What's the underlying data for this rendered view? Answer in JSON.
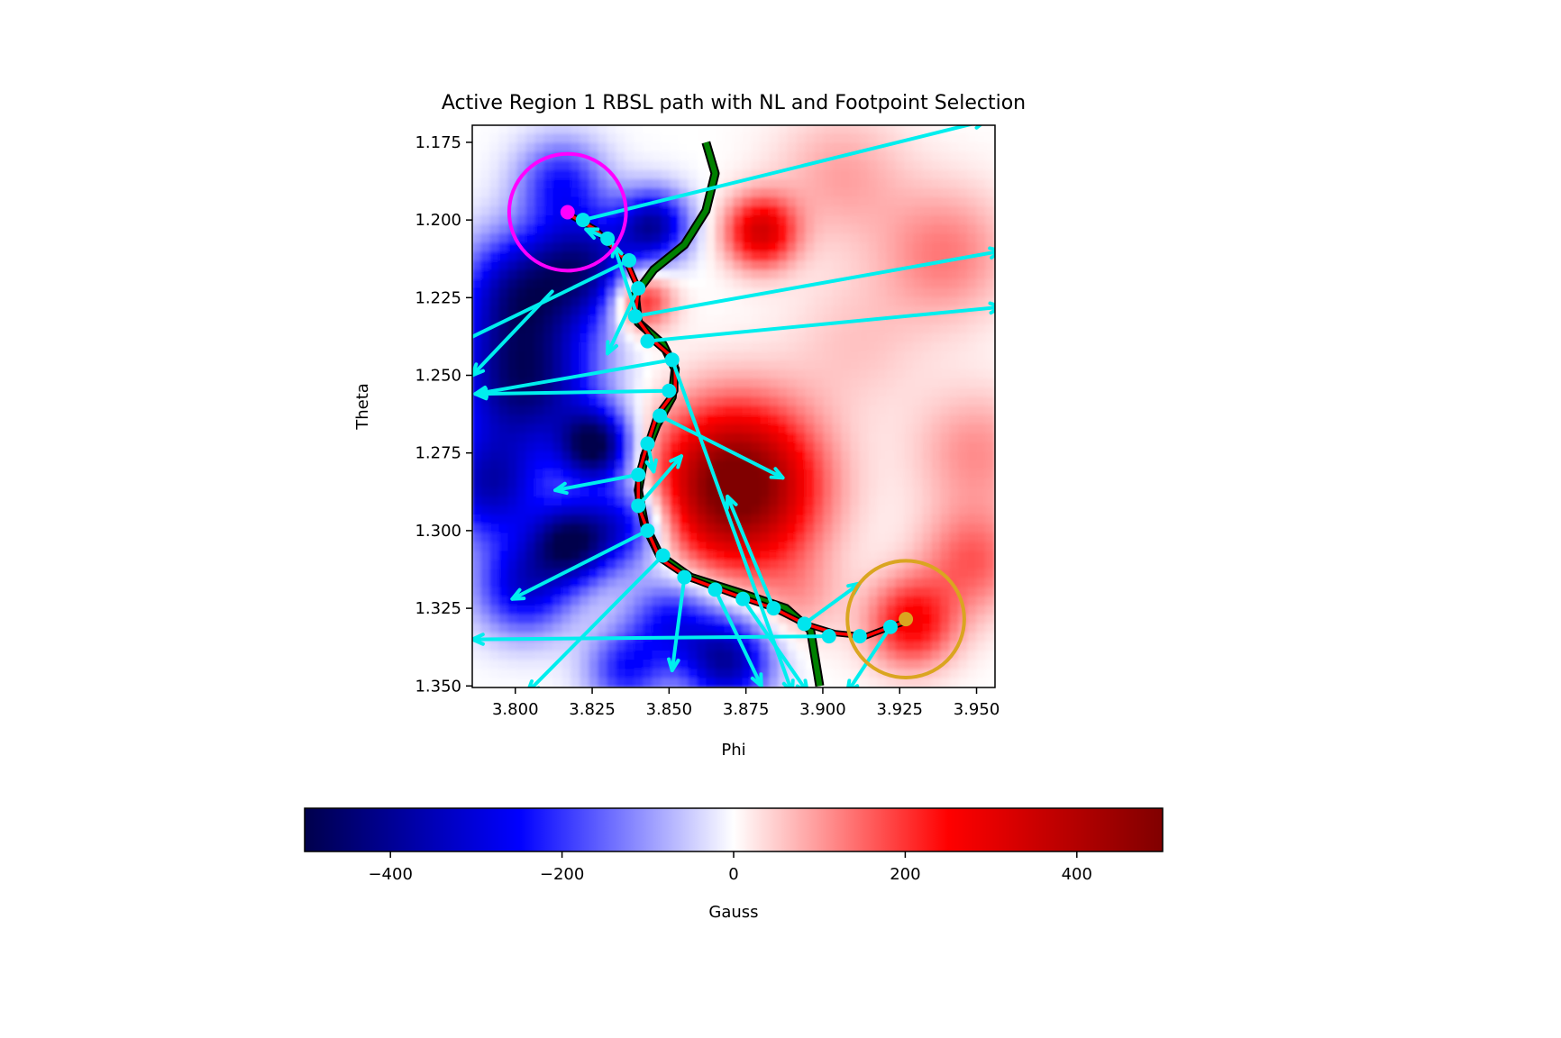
{
  "chart_data": {
    "type": "heatmap",
    "title": "Active Region 1 RBSL path with NL and Footpoint Selection",
    "xlabel": "Phi",
    "ylabel": "Theta",
    "xlim": [
      3.786,
      3.956
    ],
    "ylim": [
      1.3505,
      1.1695
    ],
    "x_ticks": [
      3.8,
      3.825,
      3.85,
      3.875,
      3.9,
      3.925,
      3.95
    ],
    "x_tick_labels": [
      "3.800",
      "3.825",
      "3.850",
      "3.875",
      "3.900",
      "3.925",
      "3.950"
    ],
    "y_ticks": [
      1.175,
      1.2,
      1.225,
      1.25,
      1.275,
      1.3,
      1.325,
      1.35
    ],
    "y_tick_labels": [
      "1.175",
      "1.200",
      "1.225",
      "1.250",
      "1.275",
      "1.300",
      "1.325",
      "1.350"
    ],
    "colormap": "seismic",
    "colorbar": {
      "label": "Gauss",
      "range": [
        -500,
        500
      ],
      "ticks": [
        -400,
        -200,
        0,
        200,
        400
      ],
      "tick_labels": [
        "−400",
        "−200",
        "0",
        "200",
        "400"
      ],
      "orientation": "horizontal"
    },
    "field_blobs": [
      {
        "phi": 3.803,
        "theta": 1.252,
        "gauss": -450,
        "radius": 0.016
      },
      {
        "phi": 3.826,
        "theta": 1.273,
        "gauss": -480,
        "radius": 0.008
      },
      {
        "phi": 3.801,
        "theta": 1.223,
        "gauss": -330,
        "radius": 0.013
      },
      {
        "phi": 3.823,
        "theta": 1.215,
        "gauss": -360,
        "radius": 0.012
      },
      {
        "phi": 3.845,
        "theta": 1.202,
        "gauss": -360,
        "radius": 0.008
      },
      {
        "phi": 3.792,
        "theta": 1.286,
        "gauss": -330,
        "radius": 0.012
      },
      {
        "phi": 3.818,
        "theta": 1.304,
        "gauss": -430,
        "radius": 0.009
      },
      {
        "phi": 3.836,
        "theta": 1.298,
        "gauss": -280,
        "radius": 0.01
      },
      {
        "phi": 3.803,
        "theta": 1.318,
        "gauss": -300,
        "radius": 0.011
      },
      {
        "phi": 3.869,
        "theta": 1.342,
        "gauss": -380,
        "radius": 0.01
      },
      {
        "phi": 3.851,
        "theta": 1.329,
        "gauss": -240,
        "radius": 0.01
      },
      {
        "phi": 3.836,
        "theta": 1.345,
        "gauss": -220,
        "radius": 0.009
      },
      {
        "phi": 3.815,
        "theta": 1.188,
        "gauss": -220,
        "radius": 0.01
      },
      {
        "phi": 3.872,
        "theta": 1.286,
        "gauss": 560,
        "radius": 0.018
      },
      {
        "phi": 3.88,
        "theta": 1.204,
        "gauss": 330,
        "radius": 0.008
      },
      {
        "phi": 3.841,
        "theta": 1.226,
        "gauss": 270,
        "radius": 0.007
      },
      {
        "phi": 3.929,
        "theta": 1.33,
        "gauss": 260,
        "radius": 0.01
      },
      {
        "phi": 3.949,
        "theta": 1.31,
        "gauss": 160,
        "radius": 0.012
      },
      {
        "phi": 3.94,
        "theta": 1.211,
        "gauss": 130,
        "radius": 0.015
      },
      {
        "phi": 3.95,
        "theta": 1.275,
        "gauss": 110,
        "radius": 0.014
      },
      {
        "phi": 3.906,
        "theta": 1.186,
        "gauss": 90,
        "radius": 0.015
      },
      {
        "phi": 3.911,
        "theta": 1.24,
        "gauss": 55,
        "radius": 0.016
      },
      {
        "phi": 3.893,
        "theta": 1.322,
        "gauss": 70,
        "radius": 0.01
      }
    ],
    "polarity_inversion_line": {
      "color": "#008000",
      "outline": "#000000",
      "points": [
        [
          3.862,
          1.175
        ],
        [
          3.865,
          1.185
        ],
        [
          3.862,
          1.197
        ],
        [
          3.855,
          1.208
        ],
        [
          3.845,
          1.216
        ],
        [
          3.839,
          1.224
        ],
        [
          3.84,
          1.233
        ],
        [
          3.848,
          1.24
        ],
        [
          3.852,
          1.248
        ],
        [
          3.851,
          1.257
        ],
        [
          3.846,
          1.266
        ],
        [
          3.842,
          1.276
        ],
        [
          3.84,
          1.287
        ],
        [
          3.842,
          1.298
        ],
        [
          3.847,
          1.308
        ],
        [
          3.857,
          1.315
        ],
        [
          3.873,
          1.32
        ],
        [
          3.888,
          1.325
        ],
        [
          3.896,
          1.332
        ],
        [
          3.899,
          1.35
        ]
      ]
    },
    "rbsl_path": {
      "color": "#ff0000",
      "outline": "#000000",
      "points": [
        [
          3.817,
          1.198
        ],
        [
          3.826,
          1.203
        ],
        [
          3.836,
          1.213
        ],
        [
          3.84,
          1.222
        ],
        [
          3.839,
          1.231
        ],
        [
          3.845,
          1.239
        ],
        [
          3.852,
          1.245
        ],
        [
          3.852,
          1.255
        ],
        [
          3.846,
          1.263
        ],
        [
          3.843,
          1.272
        ],
        [
          3.84,
          1.282
        ],
        [
          3.84,
          1.292
        ],
        [
          3.843,
          1.3
        ],
        [
          3.847,
          1.309
        ],
        [
          3.856,
          1.315
        ],
        [
          3.864,
          1.318
        ],
        [
          3.875,
          1.322
        ],
        [
          3.884,
          1.325
        ],
        [
          3.894,
          1.33
        ],
        [
          3.904,
          1.333
        ],
        [
          3.914,
          1.334
        ],
        [
          3.922,
          1.331
        ],
        [
          3.928,
          1.329
        ]
      ]
    },
    "sample_points": [
      [
        3.822,
        1.2
      ],
      [
        3.83,
        1.206
      ],
      [
        3.837,
        1.213
      ],
      [
        3.84,
        1.222
      ],
      [
        3.839,
        1.231
      ],
      [
        3.843,
        1.239
      ],
      [
        3.851,
        1.245
      ],
      [
        3.85,
        1.255
      ],
      [
        3.847,
        1.263
      ],
      [
        3.843,
        1.272
      ],
      [
        3.84,
        1.282
      ],
      [
        3.84,
        1.292
      ],
      [
        3.843,
        1.3
      ],
      [
        3.848,
        1.308
      ],
      [
        3.855,
        1.315
      ],
      [
        3.865,
        1.319
      ],
      [
        3.874,
        1.322
      ],
      [
        3.884,
        1.325
      ],
      [
        3.894,
        1.33
      ],
      [
        3.902,
        1.334
      ],
      [
        3.912,
        1.334
      ],
      [
        3.922,
        1.331
      ]
    ],
    "vectors": [
      {
        "from": [
          3.822,
          1.2
        ],
        "to": [
          3.953,
          1.168
        ]
      },
      {
        "from": [
          3.83,
          1.206
        ],
        "to": [
          3.823,
          1.203
        ]
      },
      {
        "from": [
          3.837,
          1.213
        ],
        "to": [
          3.725,
          1.267
        ]
      },
      {
        "from": [
          3.84,
          1.222
        ],
        "to": [
          3.83,
          1.243
        ]
      },
      {
        "from": [
          3.839,
          1.231
        ],
        "to": [
          3.958,
          1.21
        ]
      },
      {
        "from": [
          3.843,
          1.239
        ],
        "to": [
          3.958,
          1.228
        ]
      },
      {
        "from": [
          3.851,
          1.245
        ],
        "to": [
          3.787,
          1.256
        ]
      },
      {
        "from": [
          3.85,
          1.255
        ],
        "to": [
          3.787,
          1.256
        ]
      },
      {
        "from": [
          3.847,
          1.263
        ],
        "to": [
          3.887,
          1.283
        ]
      },
      {
        "from": [
          3.843,
          1.272
        ],
        "to": [
          3.845,
          1.281
        ]
      },
      {
        "from": [
          3.84,
          1.282
        ],
        "to": [
          3.813,
          1.287
        ]
      },
      {
        "from": [
          3.84,
          1.292
        ],
        "to": [
          3.854,
          1.276
        ]
      },
      {
        "from": [
          3.843,
          1.3
        ],
        "to": [
          3.799,
          1.322
        ]
      },
      {
        "from": [
          3.848,
          1.308
        ],
        "to": [
          3.804,
          1.352
        ]
      },
      {
        "from": [
          3.855,
          1.315
        ],
        "to": [
          3.851,
          1.345
        ]
      },
      {
        "from": [
          3.865,
          1.319
        ],
        "to": [
          3.88,
          1.35
        ]
      },
      {
        "from": [
          3.874,
          1.322
        ],
        "to": [
          3.895,
          1.352
        ]
      },
      {
        "from": [
          3.884,
          1.325
        ],
        "to": [
          3.869,
          1.289
        ]
      },
      {
        "from": [
          3.894,
          1.33
        ],
        "to": [
          3.912,
          1.317
        ]
      },
      {
        "from": [
          3.902,
          1.334
        ],
        "to": [
          3.786,
          1.335
        ]
      },
      {
        "from": [
          3.922,
          1.331
        ],
        "to": [
          3.908,
          1.352
        ]
      },
      {
        "from": [
          3.851,
          1.245
        ],
        "to": [
          3.89,
          1.352
        ]
      },
      {
        "from": [
          3.812,
          1.223
        ],
        "to": [
          3.786,
          1.25
        ]
      },
      {
        "from": [
          3.84,
          1.232
        ],
        "to": [
          3.832,
          1.208
        ]
      }
    ],
    "footpoints": [
      {
        "phi": 3.817,
        "theta": 1.1975,
        "color": "#ff00ff",
        "circle_radius": 0.019
      },
      {
        "phi": 3.927,
        "theta": 1.3285,
        "color": "#daa520",
        "circle_radius": 0.019
      }
    ],
    "colors": {
      "vector": "#00eeee",
      "point": "#00e5ee"
    }
  }
}
